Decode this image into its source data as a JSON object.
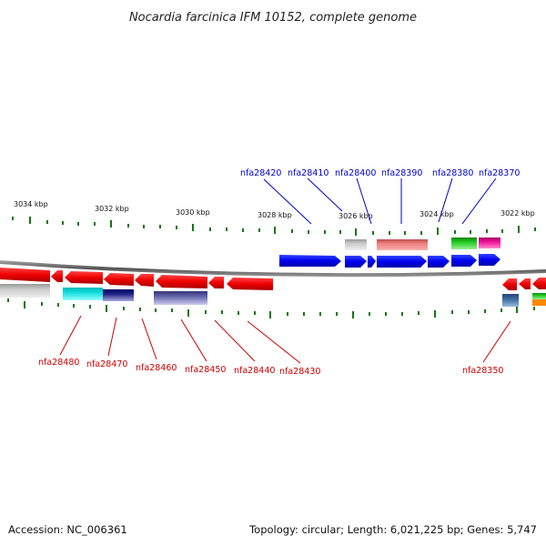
{
  "title": "Nocardia farcinica IFM 10152, complete genome",
  "ticks": [
    "3034 kbp",
    "3032 kbp",
    "3030 kbp",
    "3028 kbp",
    "3026 kbp",
    "3024 kbp",
    "3022 kbp"
  ],
  "top_labels": [
    "nfa28420",
    "nfa28410",
    "nfa28400",
    "nfa28390",
    "nfa28380",
    "nfa28370"
  ],
  "bottom_labels": [
    "nfa28480",
    "nfa28470",
    "nfa28460",
    "nfa28450",
    "nfa28440",
    "nfa28430",
    "nfa28350"
  ],
  "colors": {
    "forward_gene": "#0000ee",
    "reverse_gene": "#ee0000",
    "grey": "#bbbbbb",
    "salmon": "#f08080",
    "green": "#22cc22",
    "magenta": "#ee1199",
    "cyan": "#11dddd",
    "navy": "#222288",
    "slate": "#6666aa",
    "steel": "#4477aa",
    "orange": "#ff8800",
    "tick": "#117711"
  },
  "footer": {
    "accession": "Accession: NC_006361",
    "stats": "Topology: circular; Length: 6,021,225 bp; Genes: 5,747"
  }
}
